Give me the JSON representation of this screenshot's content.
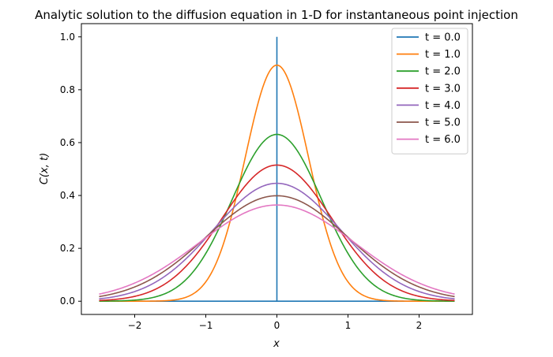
{
  "chart_data": {
    "type": "line",
    "title": "Analytic solution to the diffusion equation in 1-D for instantaneous point injection",
    "xlabel": "x",
    "ylabel": "C(x, t)",
    "xlim": [
      -2.75,
      2.75
    ],
    "ylim": [
      -0.05,
      1.05
    ],
    "x_ticks": [
      -2,
      -1,
      0,
      1,
      2
    ],
    "x_tick_labels": [
      "−2",
      "−1",
      "0",
      "1",
      "2"
    ],
    "y_ticks": [
      0.0,
      0.2,
      0.4,
      0.6,
      0.8,
      1.0
    ],
    "y_tick_labels": [
      "0.0",
      "0.2",
      "0.4",
      "0.6",
      "0.8",
      "1.0"
    ],
    "x_domain": [
      -2.5,
      2.5
    ],
    "grid": false,
    "legend_position": "top-right",
    "series": [
      {
        "name": "t = 0.0",
        "t": 0.0,
        "peak": 1.0,
        "color": "#1f77b4"
      },
      {
        "name": "t = 1.0",
        "t": 1.0,
        "peak": 0.893,
        "color": "#ff7f0e"
      },
      {
        "name": "t = 2.0",
        "t": 2.0,
        "peak": 0.631,
        "color": "#2ca02c"
      },
      {
        "name": "t = 3.0",
        "t": 3.0,
        "peak": 0.515,
        "color": "#d62728"
      },
      {
        "name": "t = 4.0",
        "t": 4.0,
        "peak": 0.446,
        "color": "#9467bd"
      },
      {
        "name": "t = 5.0",
        "t": 5.0,
        "peak": 0.399,
        "color": "#8c564b"
      },
      {
        "name": "t = 6.0",
        "t": 6.0,
        "peak": 0.364,
        "color": "#e377c2"
      }
    ]
  }
}
